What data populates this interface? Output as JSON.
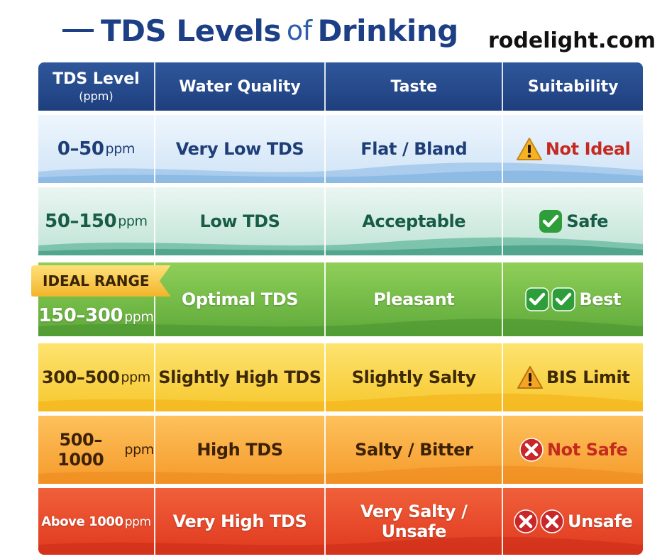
{
  "header": {
    "title_part1": "TDS Levels",
    "title_part2": "of",
    "title_part3": "Drinking",
    "site": "rodelight.com"
  },
  "table": {
    "columns": {
      "level": "TDS Level",
      "level_unit": "(ppm)",
      "quality": "Water Quality",
      "taste": "Taste",
      "suitability": "Suitability"
    },
    "ideal_label": "IDEAL RANGE",
    "rows": [
      {
        "range": "0–50",
        "unit": "ppm",
        "quality": "Very Low TDS",
        "taste": "Flat / Bland",
        "suitability": "Not Ideal",
        "icon": "warning-icon",
        "color": "#d0e4f7"
      },
      {
        "range": "50–150",
        "unit": "ppm",
        "quality": "Low TDS",
        "taste": "Acceptable",
        "suitability": "Safe",
        "icon": "check-icon",
        "color": "#bfe3d6"
      },
      {
        "range": "150–300",
        "unit": "ppm",
        "quality": "Optimal TDS",
        "taste": "Pleasant",
        "suitability": "Best",
        "icon": "double-check-icon",
        "color": "#6db544"
      },
      {
        "range": "300–500",
        "unit": "ppm",
        "quality": "Slightly High TDS",
        "taste": "Slightly Salty",
        "suitability": "BIS Limit",
        "icon": "warning-icon",
        "color": "#f9d040"
      },
      {
        "range": "500–1000",
        "unit": "ppm",
        "quality": "High TDS",
        "taste": "Salty / Bitter",
        "suitability": "Not Safe",
        "icon": "x-icon",
        "color": "#f7a83a"
      },
      {
        "range": "Above 1000",
        "unit": "ppm",
        "quality": "Very High TDS",
        "taste_line1": "Very Salty /",
        "taste_line2": "Unsafe",
        "suitability": "Unsafe",
        "icon": "double-x-icon",
        "color": "#e4462a"
      }
    ]
  },
  "colors": {
    "header_blue": "#1e3f7e",
    "title_blue": "#1d3f86",
    "warning_fill": "#f5b324",
    "check_fill": "#2e9e3a",
    "x_fill": "#c9282a",
    "not_ideal_text": "#c42a20"
  }
}
